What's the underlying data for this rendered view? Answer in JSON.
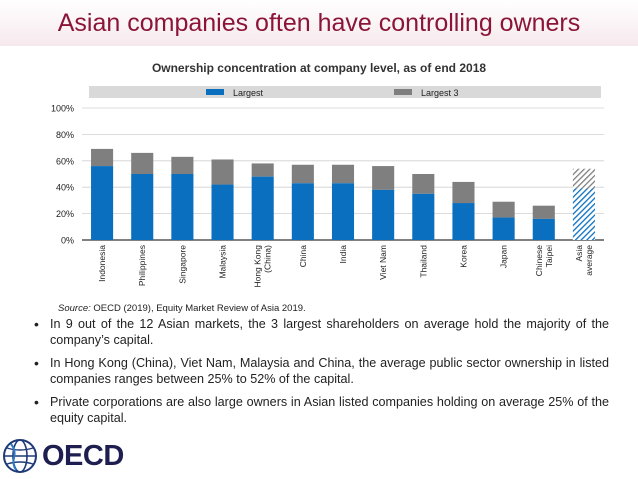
{
  "slide": {
    "title": "Asian companies often have controlling owners",
    "source_label": "Source:",
    "source_text": "OECD (2019), Equity Market Review of Asia 2019.",
    "bullets": [
      "In 9 out of the 12 Asian markets, the 3 largest shareholders on average hold the majority of the company’s capital.",
      "In Hong Kong (China), Viet Nam, Malaysia and China, the average public sector ownership in listed companies ranges between 25% to 52% of the capital.",
      "Private corporations are also large owners in Asian listed companies holding on average 25% of the equity capital."
    ],
    "logo_text": "OECD"
  },
  "chart_data": {
    "type": "bar",
    "title": "Ownership concentration at company level, as of end 2018",
    "categories": [
      "Indonesia",
      "Philippines",
      "Singapore",
      "Malaysia",
      "Hong Kong (China)",
      "China",
      "India",
      "Viet Nam",
      "Thailand",
      "Korea",
      "Japan",
      "Chinese Taipei",
      "Asia average"
    ],
    "series": [
      {
        "name": "Largest",
        "values": [
          56,
          50,
          50,
          42,
          48,
          43,
          43,
          38,
          35,
          28,
          17,
          16,
          39
        ]
      },
      {
        "name": "Largest 3",
        "values": [
          69,
          66,
          63,
          61,
          58,
          57,
          57,
          56,
          50,
          44,
          29,
          26,
          54
        ]
      }
    ],
    "yticks": [
      "0%",
      "20%",
      "40%",
      "60%",
      "80%",
      "100%"
    ],
    "ylim": [
      0,
      100
    ],
    "legend_position": "top",
    "colors": {
      "largest": "#0b6fbf",
      "largest3": "#7f7f7f",
      "average_hatch": "#0b6fbf"
    }
  }
}
